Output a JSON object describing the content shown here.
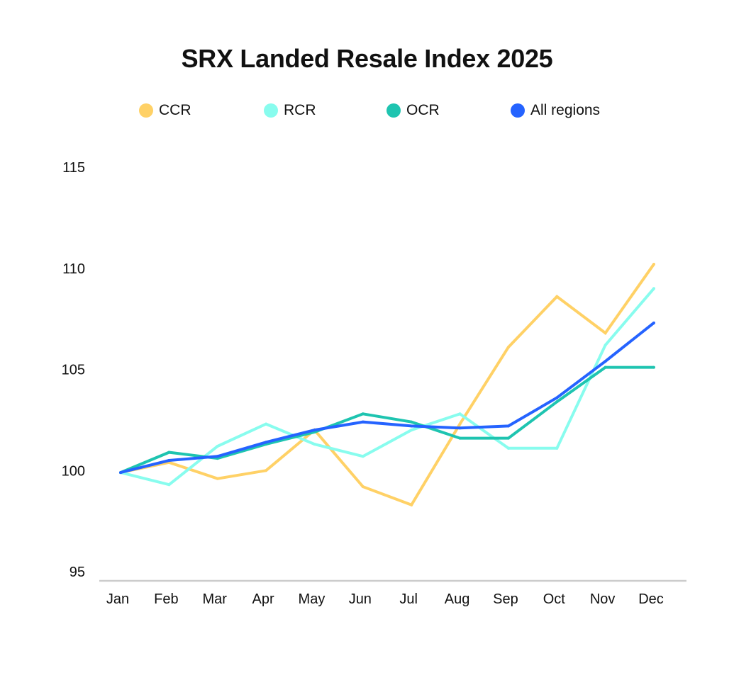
{
  "chart_data": {
    "type": "line",
    "title": "SRX Landed Resale Index 2025",
    "xlabel": "",
    "ylabel": "",
    "categories": [
      "Jan",
      "Feb",
      "Mar",
      "Apr",
      "May",
      "Jun",
      "Jul",
      "Aug",
      "Sep",
      "Oct",
      "Nov",
      "Dec"
    ],
    "ylim": [
      95,
      115
    ],
    "yticks": [
      95,
      100,
      105,
      110,
      115
    ],
    "grid": false,
    "legend_position": "top",
    "series": [
      {
        "name": "CCR",
        "color": "#FFD166",
        "values": [
          99.9,
          100.4,
          99.6,
          100.0,
          102.0,
          99.2,
          98.3,
          102.3,
          106.1,
          108.6,
          106.8,
          110.2
        ]
      },
      {
        "name": "RCR",
        "color": "#88FCEE",
        "values": [
          99.9,
          99.3,
          101.2,
          102.3,
          101.3,
          100.7,
          102.0,
          102.8,
          101.1,
          101.1,
          106.2,
          109.0
        ]
      },
      {
        "name": "OCR",
        "color": "#1EC4B0",
        "values": [
          99.9,
          100.9,
          100.6,
          101.3,
          101.9,
          102.8,
          102.4,
          101.6,
          101.6,
          103.4,
          105.1,
          105.1
        ]
      },
      {
        "name": "All regions",
        "color": "#2563FF",
        "values": [
          99.9,
          100.5,
          100.7,
          101.4,
          102.0,
          102.4,
          102.2,
          102.1,
          102.2,
          103.6,
          105.4,
          107.3
        ]
      }
    ]
  }
}
